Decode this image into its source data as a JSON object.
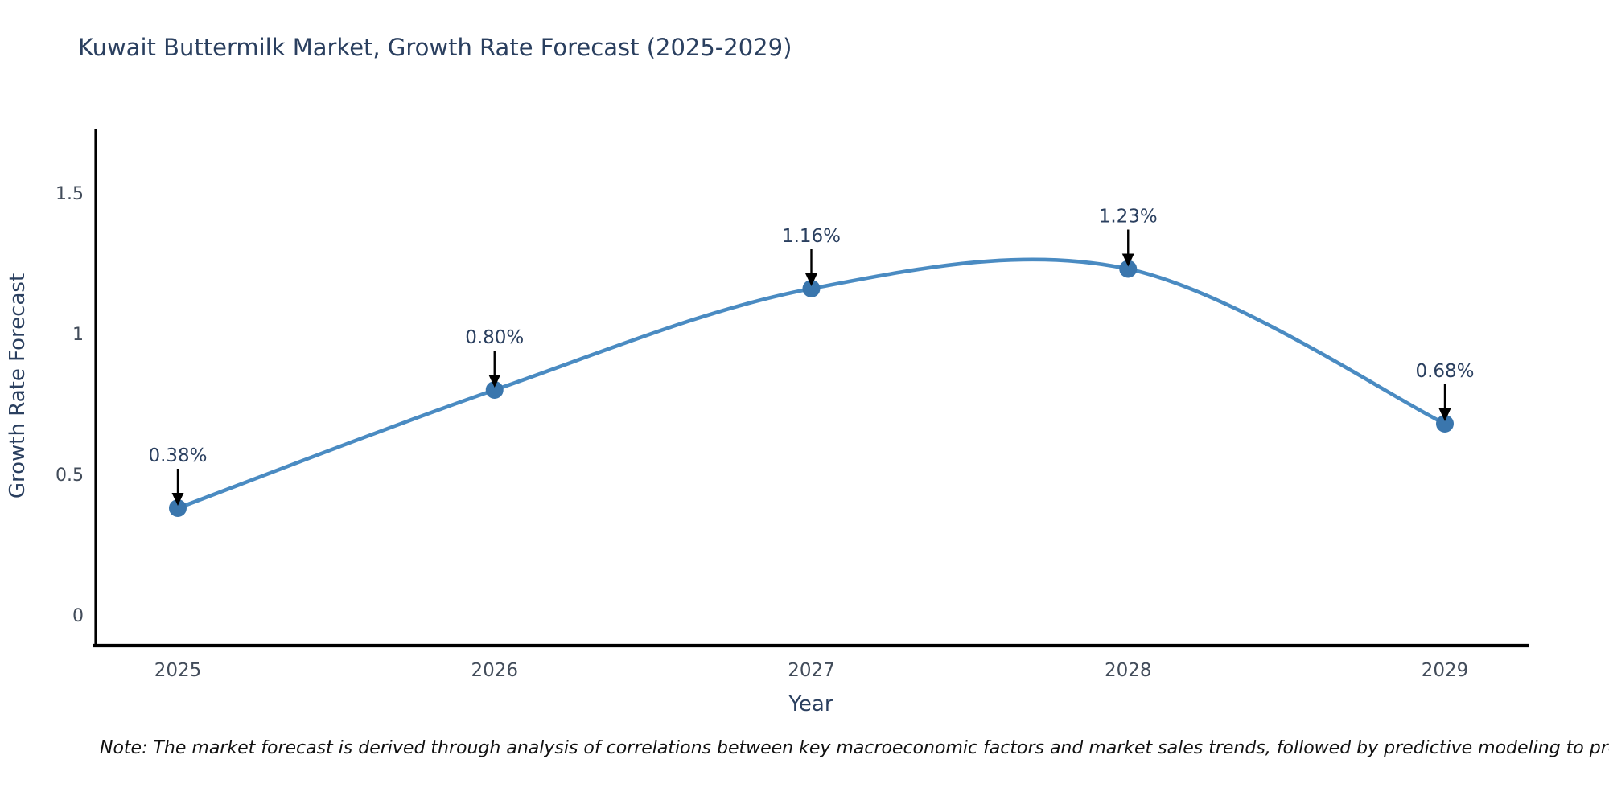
{
  "page": {
    "background": "#ffffff"
  },
  "header": {
    "title": "Kuwait Buttermilk Market, Growth Rate Forecast (2025-2029)"
  },
  "footnote": {
    "text": "Note: The market forecast is derived through analysis of correlations between key macroeconomic factors and market sales trends, followed by predictive modeling to project future sales"
  },
  "chart_data": {
    "type": "line",
    "title": "Kuwait Buttermilk Market, Growth Rate Forecast (2025-2029)",
    "x": [
      "2025",
      "2026",
      "2027",
      "2028",
      "2029"
    ],
    "series": [
      {
        "name": "Growth Rate Forecast",
        "values": [
          0.38,
          0.8,
          1.16,
          1.23,
          0.68
        ]
      }
    ],
    "point_labels": [
      "0.38%",
      "0.80%",
      "1.16%",
      "1.23%",
      "0.68%"
    ],
    "xlabel": "Year",
    "ylabel": "Growth Rate Forecast",
    "yticks": [
      0,
      0.5,
      1,
      1.5
    ],
    "ytick_labels": [
      "0",
      "0.5",
      "1",
      "1.5"
    ],
    "ylim": [
      -0.11,
      1.73
    ],
    "line_shape": "spline",
    "grid": false,
    "legend_position": "none",
    "colors": {
      "line": "#4a8bc2",
      "marker": "#3a76ad",
      "arrow": "#000000",
      "axis_line": "#000000",
      "heading_text": "#2a3f5f",
      "tick_text": "#424c5a"
    }
  }
}
